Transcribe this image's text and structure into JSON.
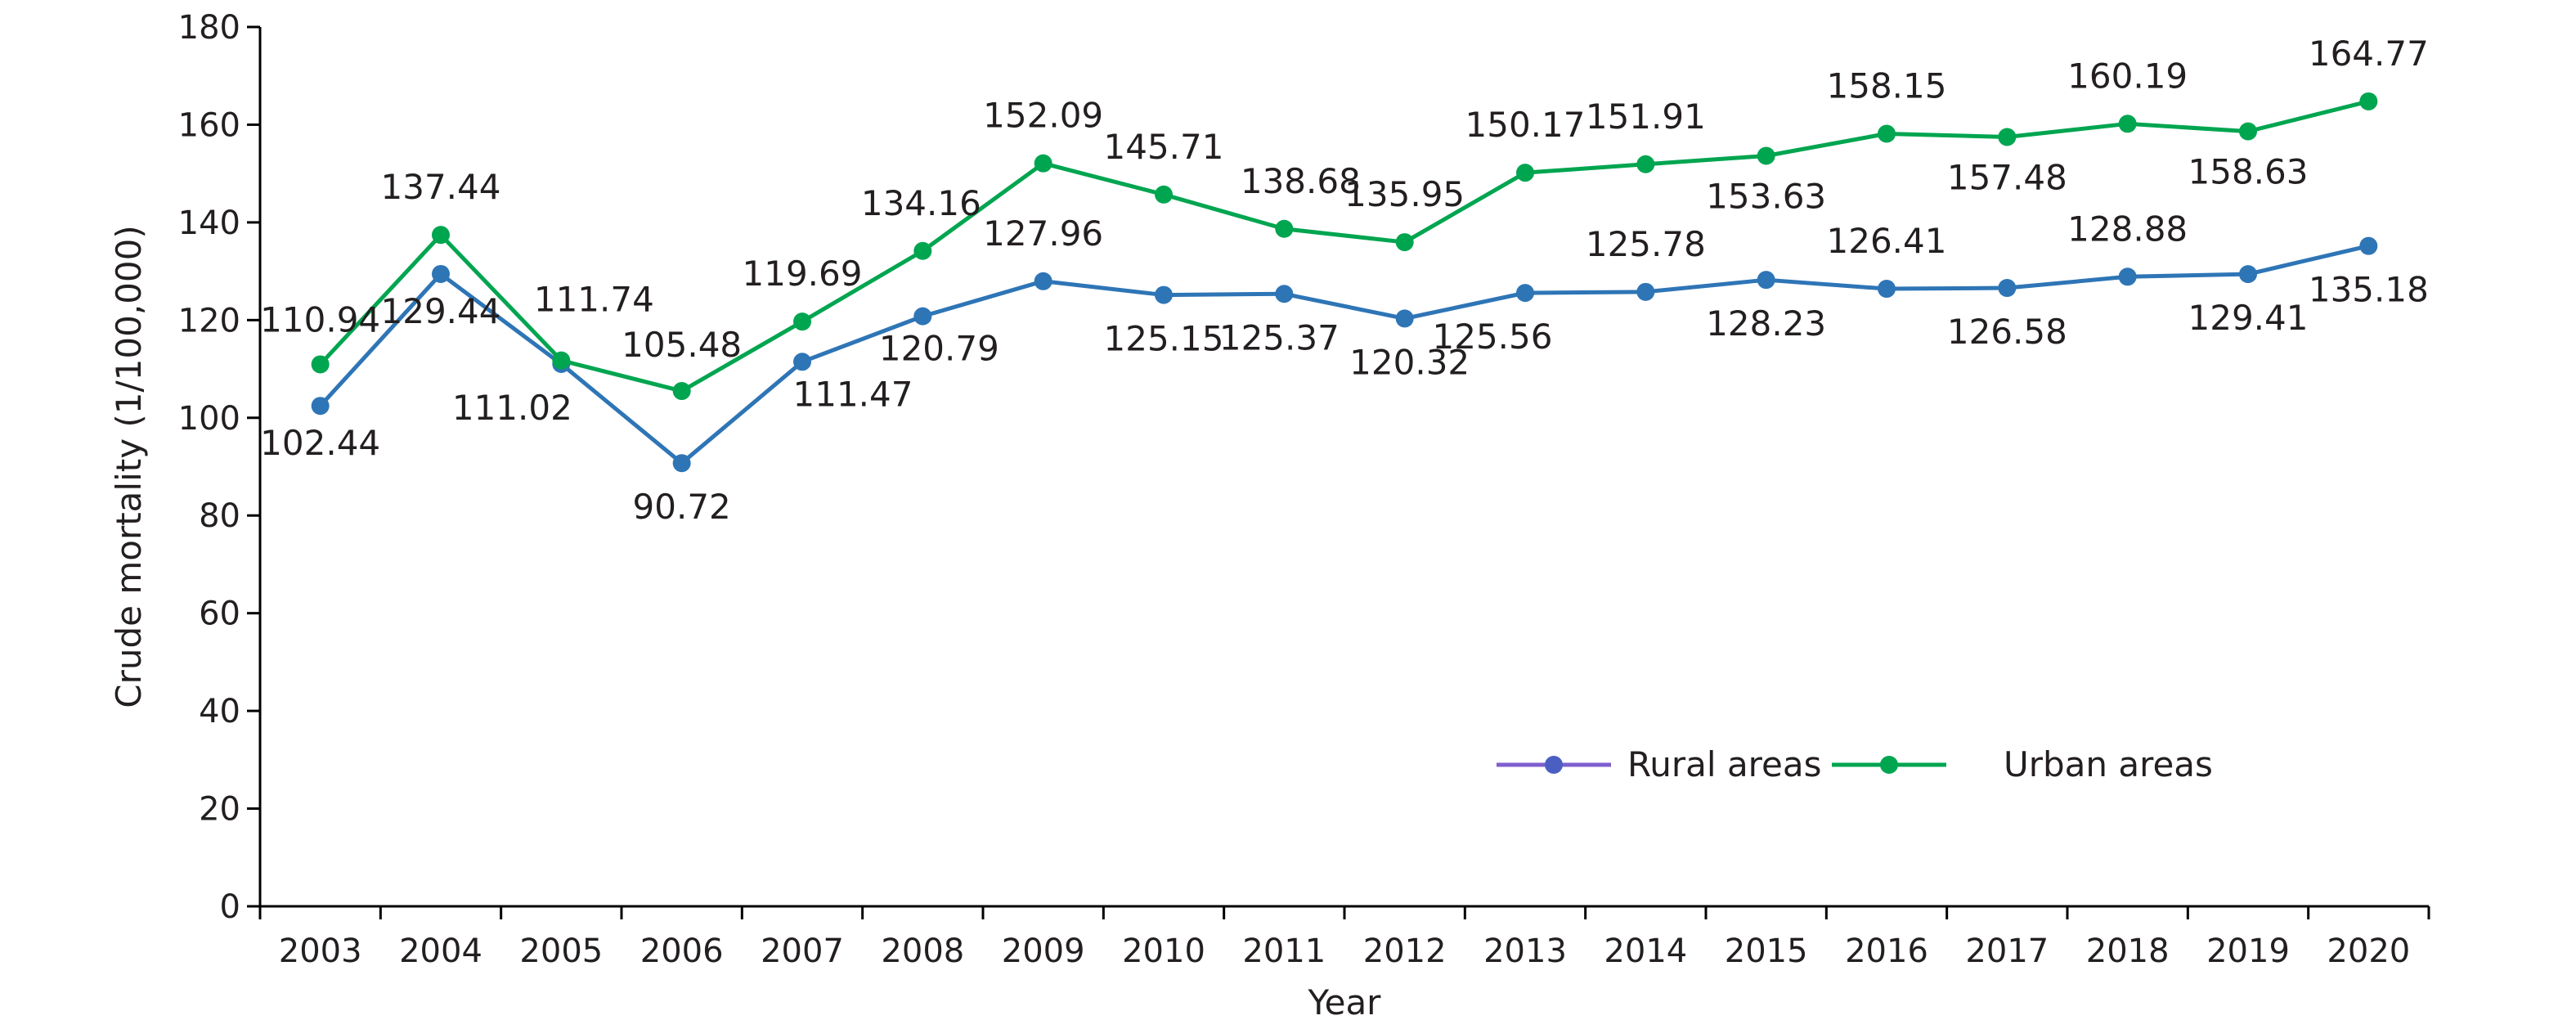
{
  "chart_data": {
    "type": "line",
    "title": "",
    "xlabel": "Year",
    "ylabel": "Crude mortality (1/100,000)",
    "categories": [
      "2003",
      "2004",
      "2005",
      "2006",
      "2007",
      "2008",
      "2009",
      "2010",
      "2011",
      "2012",
      "2013",
      "2014",
      "2015",
      "2016",
      "2017",
      "2018",
      "2019",
      "2020"
    ],
    "ylim": [
      0,
      180
    ],
    "yticks": [
      0,
      20,
      40,
      60,
      80,
      100,
      120,
      140,
      160,
      180
    ],
    "grid": false,
    "legend_position": "lower-right",
    "series": [
      {
        "name": "Rural areas",
        "line_color": "#2e75b6",
        "marker_color": "#2e75b6",
        "legend_line_color": "#7f5fcf",
        "legend_marker_color": "#4a5fc1",
        "values": [
          102.44,
          129.44,
          111.02,
          90.72,
          111.47,
          120.79,
          127.96,
          125.15,
          125.37,
          120.32,
          125.56,
          125.78,
          128.23,
          126.41,
          126.58,
          128.88,
          129.41,
          135.18
        ],
        "labels": [
          "102.44",
          "129.44",
          "111.02",
          "90.72",
          "111.47",
          "120.79",
          "127.96",
          "125.15",
          "125.37",
          "120.32",
          "125.56",
          "125.78",
          "128.23",
          "126.41",
          "126.58",
          "128.88",
          "129.41",
          "135.18"
        ]
      },
      {
        "name": "Urban areas",
        "line_color": "#00a550",
        "marker_color": "#00a550",
        "legend_line_color": "#00a550",
        "legend_marker_color": "#00a550",
        "values": [
          110.94,
          137.44,
          111.74,
          105.48,
          119.69,
          134.16,
          152.09,
          145.71,
          138.68,
          135.95,
          150.17,
          151.91,
          153.63,
          158.15,
          157.48,
          160.19,
          158.63,
          164.77
        ],
        "labels": [
          "110.94",
          "137.44",
          "111.74",
          "105.48",
          "119.69",
          "134.16",
          "152.09",
          "145.71",
          "138.68",
          "135.95",
          "150.17",
          "151.91",
          "153.63",
          "158.15",
          "157.48",
          "160.19",
          "158.63",
          "164.77"
        ]
      }
    ]
  }
}
